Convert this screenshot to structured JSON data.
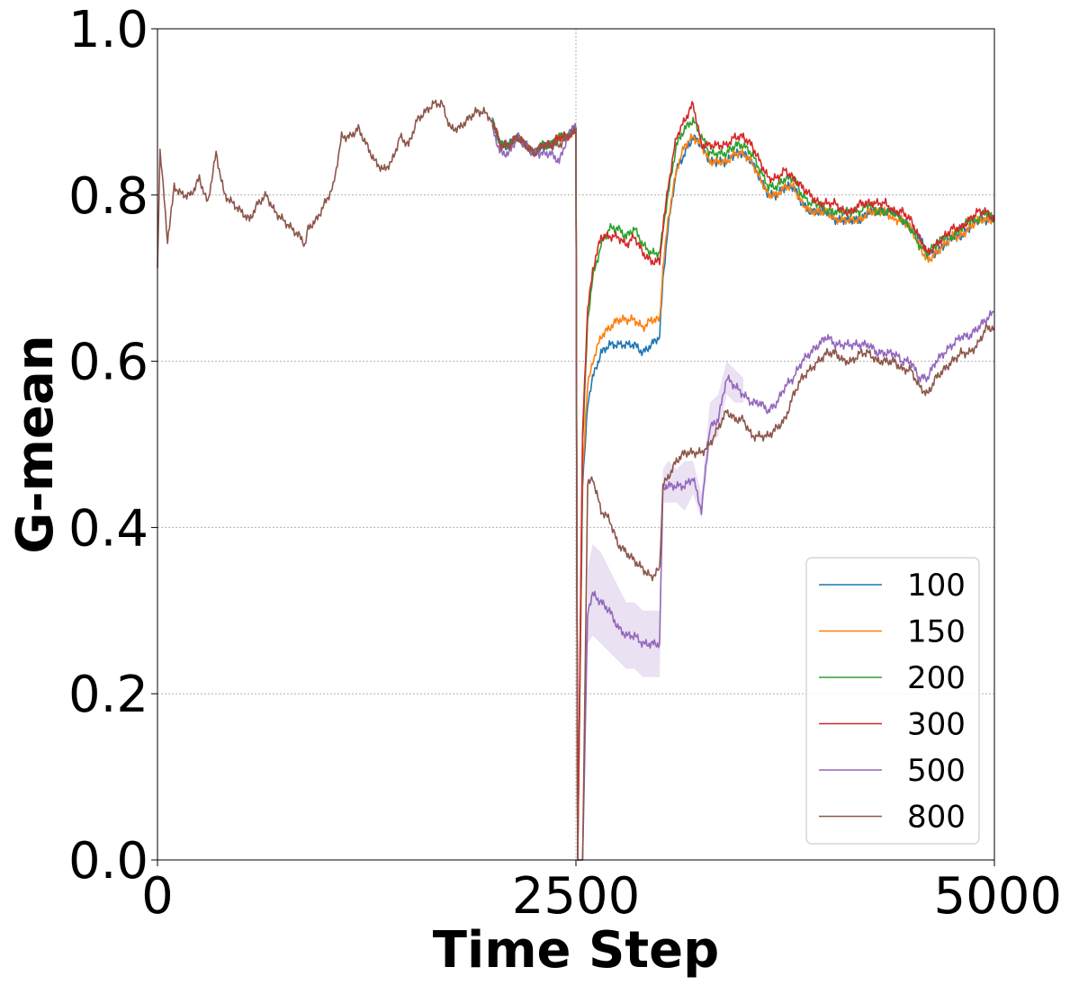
{
  "chart_data": {
    "type": "line",
    "title": "",
    "xlabel": "Time Step",
    "ylabel": "G-mean",
    "xlim": [
      0,
      5000
    ],
    "ylim": [
      0.0,
      1.0
    ],
    "x_ticks": [
      0,
      2500,
      5000
    ],
    "x_tick_labels": [
      "0",
      "2500",
      "5000"
    ],
    "y_ticks": [
      0.0,
      0.2,
      0.4,
      0.6,
      0.8,
      1.0
    ],
    "y_tick_labels": [
      "0.0",
      "0.2",
      "0.4",
      "0.6",
      "0.8",
      "1.0"
    ],
    "grid": true,
    "legend_position": "lower-right",
    "drift_point": 2500,
    "shared_history": {
      "x": [
        0,
        15,
        40,
        60,
        100,
        150,
        200,
        250,
        300,
        350,
        400,
        450,
        500,
        550,
        600,
        650,
        700,
        750,
        800,
        850,
        880,
        900,
        950,
        1000,
        1050,
        1100,
        1150,
        1200,
        1250,
        1300,
        1350,
        1400,
        1450,
        1500,
        1550,
        1600,
        1650,
        1700,
        1750,
        1800,
        1850,
        1900,
        1950,
        2000
      ],
      "y": [
        0.71,
        0.85,
        0.8,
        0.74,
        0.81,
        0.8,
        0.8,
        0.82,
        0.79,
        0.85,
        0.8,
        0.79,
        0.78,
        0.77,
        0.79,
        0.8,
        0.78,
        0.77,
        0.76,
        0.75,
        0.74,
        0.76,
        0.77,
        0.79,
        0.81,
        0.87,
        0.87,
        0.88,
        0.86,
        0.84,
        0.83,
        0.84,
        0.87,
        0.86,
        0.89,
        0.9,
        0.91,
        0.91,
        0.88,
        0.88,
        0.89,
        0.9,
        0.9,
        0.89
      ]
    },
    "post_drift_x": [
      2500,
      2510,
      2540,
      2570,
      2600,
      2650,
      2700,
      2750,
      2800,
      2850,
      2900,
      2950,
      3000,
      3020,
      3050,
      3100,
      3150,
      3200,
      3250,
      3300,
      3350,
      3400,
      3450,
      3500,
      3550,
      3600,
      3650,
      3700,
      3750,
      3800,
      3850,
      3900,
      3950,
      4000,
      4050,
      4100,
      4150,
      4200,
      4250,
      4300,
      4350,
      4400,
      4450,
      4500,
      4550,
      4600,
      4650,
      4700,
      4750,
      4800,
      4850,
      4900,
      4950,
      5000
    ],
    "series": [
      {
        "name": "100",
        "color": "#1f77b4",
        "x": [
          2000,
          2050,
          2100,
          2150,
          2200,
          2250,
          2300,
          2350,
          2400,
          2450,
          2490,
          2500,
          2510,
          2540,
          2570,
          2600,
          2650,
          2700,
          2750,
          2800,
          2850,
          2900,
          2950,
          3000,
          3020,
          3050,
          3100,
          3150,
          3200,
          3250,
          3300,
          3350,
          3400,
          3450,
          3500,
          3550,
          3600,
          3650,
          3700,
          3750,
          3800,
          3850,
          3900,
          3950,
          4000,
          4050,
          4100,
          4150,
          4200,
          4250,
          4300,
          4350,
          4400,
          4450,
          4500,
          4550,
          4600,
          4650,
          4700,
          4750,
          4800,
          4850,
          4900,
          4950,
          5000
        ],
        "y": [
          0.89,
          0.86,
          0.86,
          0.87,
          0.86,
          0.85,
          0.86,
          0.86,
          0.87,
          0.87,
          0.88,
          0.88,
          0.0,
          0.45,
          0.55,
          0.58,
          0.61,
          0.62,
          0.62,
          0.62,
          0.62,
          0.61,
          0.62,
          0.63,
          0.7,
          0.76,
          0.83,
          0.85,
          0.87,
          0.86,
          0.84,
          0.84,
          0.84,
          0.85,
          0.85,
          0.84,
          0.82,
          0.8,
          0.8,
          0.81,
          0.81,
          0.79,
          0.78,
          0.78,
          0.78,
          0.77,
          0.77,
          0.77,
          0.77,
          0.78,
          0.78,
          0.78,
          0.78,
          0.77,
          0.76,
          0.75,
          0.73,
          0.73,
          0.74,
          0.75,
          0.75,
          0.76,
          0.77,
          0.77,
          0.77
        ]
      },
      {
        "name": "150",
        "color": "#ff7f0e",
        "x": [
          2000,
          2050,
          2100,
          2150,
          2200,
          2250,
          2300,
          2350,
          2400,
          2450,
          2490,
          2500,
          2510,
          2540,
          2570,
          2600,
          2650,
          2700,
          2750,
          2800,
          2850,
          2900,
          2950,
          3000,
          3020,
          3050,
          3100,
          3150,
          3200,
          3250,
          3300,
          3350,
          3400,
          3450,
          3500,
          3550,
          3600,
          3650,
          3700,
          3750,
          3800,
          3850,
          3900,
          3950,
          4000,
          4050,
          4100,
          4150,
          4200,
          4250,
          4300,
          4350,
          4400,
          4450,
          4500,
          4550,
          4600,
          4650,
          4700,
          4750,
          4800,
          4850,
          4900,
          4950,
          5000
        ],
        "y": [
          0.89,
          0.86,
          0.86,
          0.87,
          0.86,
          0.85,
          0.86,
          0.86,
          0.87,
          0.87,
          0.88,
          0.88,
          0.0,
          0.47,
          0.57,
          0.6,
          0.63,
          0.64,
          0.65,
          0.65,
          0.65,
          0.64,
          0.65,
          0.65,
          0.71,
          0.77,
          0.83,
          0.86,
          0.87,
          0.86,
          0.84,
          0.84,
          0.84,
          0.85,
          0.85,
          0.84,
          0.82,
          0.8,
          0.8,
          0.81,
          0.81,
          0.79,
          0.78,
          0.78,
          0.78,
          0.77,
          0.77,
          0.77,
          0.77,
          0.78,
          0.78,
          0.78,
          0.77,
          0.77,
          0.76,
          0.74,
          0.72,
          0.73,
          0.74,
          0.75,
          0.75,
          0.76,
          0.77,
          0.77,
          0.77
        ]
      },
      {
        "name": "200",
        "color": "#2ca02c",
        "x": [
          2000,
          2050,
          2100,
          2150,
          2200,
          2250,
          2300,
          2350,
          2400,
          2450,
          2490,
          2500,
          2510,
          2540,
          2570,
          2600,
          2650,
          2700,
          2750,
          2800,
          2850,
          2900,
          2950,
          3000,
          3020,
          3050,
          3100,
          3150,
          3200,
          3250,
          3300,
          3350,
          3400,
          3450,
          3500,
          3550,
          3600,
          3650,
          3700,
          3750,
          3800,
          3850,
          3900,
          3950,
          4000,
          4050,
          4100,
          4150,
          4200,
          4250,
          4300,
          4350,
          4400,
          4450,
          4500,
          4550,
          4600,
          4650,
          4700,
          4750,
          4800,
          4850,
          4900,
          4950,
          5000
        ],
        "y": [
          0.89,
          0.86,
          0.86,
          0.87,
          0.86,
          0.85,
          0.86,
          0.86,
          0.87,
          0.87,
          0.88,
          0.88,
          0.0,
          0.5,
          0.65,
          0.7,
          0.74,
          0.76,
          0.76,
          0.75,
          0.76,
          0.74,
          0.73,
          0.73,
          0.76,
          0.8,
          0.86,
          0.88,
          0.89,
          0.87,
          0.85,
          0.85,
          0.85,
          0.86,
          0.86,
          0.85,
          0.83,
          0.81,
          0.81,
          0.82,
          0.82,
          0.8,
          0.79,
          0.79,
          0.78,
          0.78,
          0.78,
          0.78,
          0.78,
          0.79,
          0.78,
          0.78,
          0.78,
          0.77,
          0.76,
          0.74,
          0.73,
          0.74,
          0.75,
          0.75,
          0.76,
          0.77,
          0.77,
          0.78,
          0.77
        ]
      },
      {
        "name": "300",
        "color": "#d62728",
        "x": [
          2000,
          2050,
          2100,
          2150,
          2200,
          2250,
          2300,
          2350,
          2400,
          2450,
          2490,
          2500,
          2510,
          2540,
          2570,
          2600,
          2650,
          2700,
          2750,
          2800,
          2850,
          2900,
          2950,
          3000,
          3020,
          3050,
          3100,
          3150,
          3200,
          3250,
          3300,
          3350,
          3400,
          3450,
          3500,
          3550,
          3600,
          3650,
          3700,
          3750,
          3800,
          3850,
          3900,
          3950,
          4000,
          4050,
          4100,
          4150,
          4200,
          4250,
          4300,
          4350,
          4400,
          4450,
          4500,
          4550,
          4600,
          4650,
          4700,
          4750,
          4800,
          4850,
          4900,
          4950,
          5000
        ],
        "y": [
          0.89,
          0.86,
          0.86,
          0.87,
          0.86,
          0.85,
          0.86,
          0.86,
          0.87,
          0.87,
          0.88,
          0.88,
          0.0,
          0.52,
          0.66,
          0.71,
          0.75,
          0.75,
          0.75,
          0.74,
          0.75,
          0.73,
          0.72,
          0.72,
          0.76,
          0.81,
          0.87,
          0.89,
          0.91,
          0.86,
          0.86,
          0.86,
          0.86,
          0.87,
          0.87,
          0.86,
          0.84,
          0.82,
          0.82,
          0.83,
          0.82,
          0.81,
          0.8,
          0.79,
          0.79,
          0.79,
          0.78,
          0.78,
          0.79,
          0.79,
          0.79,
          0.79,
          0.78,
          0.78,
          0.77,
          0.75,
          0.73,
          0.74,
          0.75,
          0.76,
          0.76,
          0.77,
          0.78,
          0.78,
          0.77
        ]
      },
      {
        "name": "500",
        "color": "#9467bd",
        "x": [
          2000,
          2050,
          2100,
          2150,
          2200,
          2250,
          2300,
          2350,
          2400,
          2450,
          2490,
          2500,
          2510,
          2540,
          2570,
          2600,
          2650,
          2700,
          2750,
          2800,
          2850,
          2900,
          2950,
          3000,
          3020,
          3050,
          3100,
          3150,
          3200,
          3250,
          3300,
          3350,
          3400,
          3450,
          3500,
          3550,
          3600,
          3650,
          3700,
          3750,
          3800,
          3850,
          3900,
          3950,
          4000,
          4050,
          4100,
          4150,
          4200,
          4250,
          4300,
          4350,
          4400,
          4450,
          4500,
          4550,
          4600,
          4650,
          4700,
          4750,
          4800,
          4850,
          4900,
          4950,
          5000
        ],
        "y": [
          0.88,
          0.85,
          0.85,
          0.87,
          0.86,
          0.85,
          0.85,
          0.85,
          0.84,
          0.87,
          0.88,
          0.88,
          0.0,
          0.0,
          0.3,
          0.32,
          0.31,
          0.3,
          0.28,
          0.27,
          0.27,
          0.26,
          0.26,
          0.26,
          0.45,
          0.45,
          0.45,
          0.45,
          0.46,
          0.42,
          0.52,
          0.53,
          0.58,
          0.57,
          0.56,
          0.55,
          0.55,
          0.54,
          0.55,
          0.57,
          0.58,
          0.6,
          0.61,
          0.62,
          0.63,
          0.62,
          0.62,
          0.62,
          0.62,
          0.62,
          0.61,
          0.61,
          0.61,
          0.6,
          0.6,
          0.58,
          0.58,
          0.6,
          0.61,
          0.62,
          0.63,
          0.63,
          0.64,
          0.65,
          0.66
        ]
      },
      {
        "name": "800",
        "color": "#8c564b",
        "x": [
          2000,
          2050,
          2100,
          2150,
          2200,
          2250,
          2300,
          2350,
          2400,
          2450,
          2490,
          2500,
          2510,
          2540,
          2570,
          2600,
          2650,
          2700,
          2750,
          2800,
          2850,
          2900,
          2950,
          3000,
          3020,
          3050,
          3100,
          3150,
          3200,
          3250,
          3300,
          3350,
          3400,
          3450,
          3500,
          3550,
          3600,
          3650,
          3700,
          3750,
          3800,
          3850,
          3900,
          3950,
          4000,
          4050,
          4100,
          4150,
          4200,
          4250,
          4300,
          4350,
          4400,
          4450,
          4500,
          4550,
          4600,
          4650,
          4700,
          4750,
          4800,
          4850,
          4900,
          4950,
          5000
        ],
        "y": [
          0.89,
          0.86,
          0.86,
          0.87,
          0.86,
          0.85,
          0.86,
          0.86,
          0.86,
          0.87,
          0.88,
          0.88,
          0.0,
          0.0,
          0.45,
          0.46,
          0.42,
          0.41,
          0.38,
          0.37,
          0.36,
          0.35,
          0.34,
          0.35,
          0.45,
          0.46,
          0.48,
          0.49,
          0.49,
          0.49,
          0.5,
          0.52,
          0.54,
          0.53,
          0.53,
          0.51,
          0.51,
          0.51,
          0.52,
          0.53,
          0.56,
          0.58,
          0.59,
          0.6,
          0.61,
          0.61,
          0.6,
          0.6,
          0.61,
          0.61,
          0.6,
          0.6,
          0.6,
          0.59,
          0.59,
          0.57,
          0.56,
          0.58,
          0.59,
          0.6,
          0.61,
          0.61,
          0.62,
          0.64,
          0.64
        ]
      }
    ],
    "bands": [
      {
        "series": "500",
        "x": [
          2570,
          2600,
          2650,
          2700,
          2750,
          2800,
          2850,
          2900,
          2950,
          3000,
          3020,
          3050,
          3100,
          3150,
          3200,
          3250,
          3300,
          3350,
          3400,
          3450,
          3500
        ],
        "lower": [
          0.26,
          0.27,
          0.26,
          0.25,
          0.24,
          0.23,
          0.23,
          0.22,
          0.22,
          0.22,
          0.43,
          0.43,
          0.43,
          0.42,
          0.44,
          0.41,
          0.5,
          0.51,
          0.56,
          0.55,
          0.55
        ],
        "upper": [
          0.35,
          0.38,
          0.37,
          0.35,
          0.33,
          0.31,
          0.31,
          0.3,
          0.3,
          0.3,
          0.47,
          0.48,
          0.47,
          0.48,
          0.48,
          0.44,
          0.55,
          0.56,
          0.6,
          0.59,
          0.58
        ]
      }
    ]
  }
}
